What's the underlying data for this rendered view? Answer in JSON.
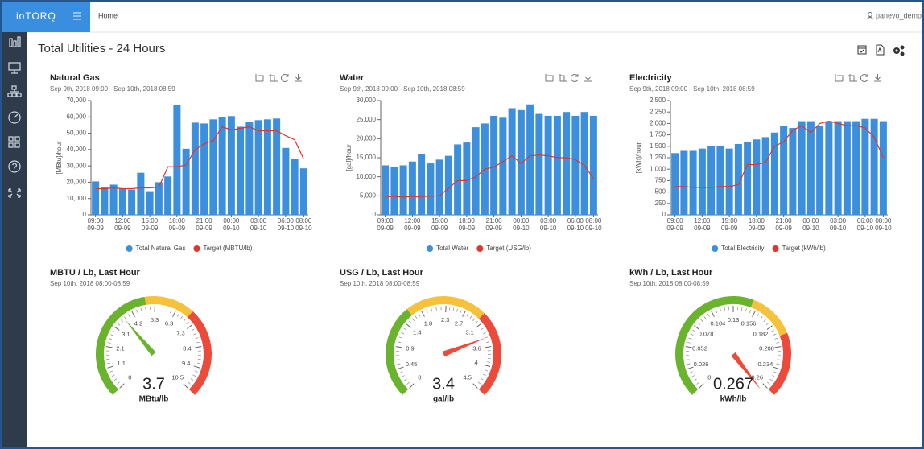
{
  "header": {
    "brand": "ioTORQ",
    "breadcrumb": "Home",
    "user": "panevo_demo"
  },
  "page_title": "Total Utilities - 24 Hours",
  "chart_data": [
    {
      "type": "bar",
      "title": "Natural Gas",
      "subtitle": "Sep 9th, 2018 09:00 - Sep 10th, 2018 08:59",
      "ylabel": "[MBtu]/hour",
      "categories": [
        [
          "09:00",
          "09-09"
        ],
        null,
        null,
        [
          "12:00",
          "09-09"
        ],
        null,
        null,
        [
          "15:00",
          "09-09"
        ],
        null,
        null,
        [
          "18:00",
          "09-09"
        ],
        null,
        null,
        [
          "21:00",
          "09-09"
        ],
        null,
        null,
        [
          "00:00",
          "09-10"
        ],
        null,
        null,
        [
          "03:00",
          "09-10"
        ],
        null,
        null,
        [
          "06:00",
          "09-10"
        ],
        null,
        [
          "08:00",
          "09-10"
        ]
      ],
      "series": [
        {
          "name": "Total Natural Gas",
          "type": "bar",
          "color": "#3b8fdd",
          "values": [
            20500,
            17000,
            18500,
            16000,
            15500,
            25800,
            14500,
            20000,
            23500,
            67500,
            40500,
            56500,
            56000,
            58500,
            60000,
            60500,
            54000,
            57000,
            58000,
            58500,
            59000,
            41000,
            34500,
            28500
          ]
        },
        {
          "name": "Target (MBTU/lb)",
          "type": "line",
          "color": "#e2342d",
          "values": [
            16000,
            16000,
            16500,
            16000,
            16000,
            16500,
            16500,
            17000,
            29500,
            29500,
            30500,
            40000,
            43500,
            45500,
            54000,
            52000,
            53000,
            54000,
            51500,
            51500,
            51500,
            48500,
            46000,
            34000
          ]
        }
      ],
      "ylim": [
        0,
        70000
      ],
      "yticks": [
        0,
        {
          "value": 10000,
          "label": "10,000"
        },
        {
          "value": 20000,
          "label": "20,000"
        },
        {
          "value": 30000,
          "label": "30,000"
        },
        {
          "value": 40000,
          "label": "40,000"
        },
        {
          "value": 50000,
          "label": "50,000"
        },
        {
          "value": 60000,
          "label": "60,000"
        },
        {
          "value": 70000,
          "label": "70,000"
        }
      ]
    },
    {
      "type": "bar",
      "title": "Water",
      "subtitle": "Sep 9th, 2018 09:00 - Sep 10th, 2018 08:59",
      "ylabel": "[gal]/hour",
      "categories": [
        [
          "09:00",
          "09-09"
        ],
        null,
        null,
        [
          "12:00",
          "09-09"
        ],
        null,
        null,
        [
          "15:00",
          "09-09"
        ],
        null,
        null,
        [
          "18:00",
          "09-09"
        ],
        null,
        null,
        [
          "21:00",
          "09-09"
        ],
        null,
        null,
        [
          "00:00",
          "09-10"
        ],
        null,
        null,
        [
          "03:00",
          "09-10"
        ],
        null,
        null,
        [
          "06:00",
          "09-10"
        ],
        null,
        [
          "08:00",
          "09-10"
        ]
      ],
      "series": [
        {
          "name": "Total Water",
          "type": "bar",
          "color": "#3b8fdd",
          "values": [
            13000,
            12500,
            13000,
            14000,
            16000,
            13500,
            14500,
            15500,
            18500,
            19000,
            23000,
            24000,
            26000,
            25500,
            28000,
            27500,
            29000,
            26500,
            26000,
            26000,
            27000,
            26000,
            27000,
            26000
          ]
        },
        {
          "name": "Target (USG/lb)",
          "type": "line",
          "color": "#e2342d",
          "values": [
            4800,
            4800,
            4700,
            4800,
            4800,
            4900,
            5000,
            7000,
            9000,
            9000,
            10000,
            12000,
            12500,
            14000,
            15500,
            13500,
            15500,
            15700,
            15500,
            15000,
            15000,
            14500,
            13000,
            9500
          ]
        }
      ],
      "ylim": [
        0,
        30000
      ],
      "yticks": [
        0,
        {
          "value": 5000,
          "label": "5,000"
        },
        {
          "value": 10000,
          "label": "10,000"
        },
        {
          "value": 15000,
          "label": "15,000"
        },
        {
          "value": 20000,
          "label": "20,000"
        },
        {
          "value": 25000,
          "label": "25,000"
        },
        {
          "value": 30000,
          "label": "30,000"
        }
      ]
    },
    {
      "type": "bar",
      "title": "Electricity",
      "subtitle": "Sep 9th, 2018 09:00 - Sep 10th, 2018 08:59",
      "ylabel": "[kWh]/hour",
      "categories": [
        [
          "09:00",
          "09-09"
        ],
        null,
        null,
        [
          "12:00",
          "09-09"
        ],
        null,
        null,
        [
          "15:00",
          "09-09"
        ],
        null,
        null,
        [
          "18:00",
          "09-09"
        ],
        null,
        null,
        [
          "21:00",
          "09-09"
        ],
        null,
        null,
        [
          "00:00",
          "09-10"
        ],
        null,
        null,
        [
          "03:00",
          "09-10"
        ],
        null,
        null,
        [
          "06:00",
          "09-10"
        ],
        null,
        [
          "08:00",
          "09-10"
        ]
      ],
      "series": [
        {
          "name": "Total Electricity",
          "type": "bar",
          "color": "#3b8fdd",
          "values": [
            1350,
            1400,
            1400,
            1450,
            1500,
            1500,
            1450,
            1550,
            1600,
            1650,
            1700,
            1800,
            1950,
            1900,
            2050,
            2050,
            1950,
            2050,
            2050,
            2050,
            2050,
            2100,
            2100,
            2050
          ]
        },
        {
          "name": "Target (kWh/lb)",
          "type": "line",
          "color": "#e2342d",
          "values": [
            620,
            620,
            600,
            600,
            600,
            620,
            620,
            660,
            1100,
            1100,
            1150,
            1500,
            1600,
            1850,
            1950,
            1800,
            2000,
            2050,
            2000,
            1950,
            1950,
            1900,
            1700,
            1250
          ]
        }
      ],
      "ylim": [
        0,
        2500
      ],
      "yticks": [
        0,
        250,
        500,
        750,
        {
          "value": 1000,
          "label": "1,000"
        },
        {
          "value": 1250,
          "label": "1,250"
        },
        {
          "value": 1500,
          "label": "1,500"
        },
        {
          "value": 1750,
          "label": "1,750"
        },
        {
          "value": 2000,
          "label": "2,000"
        },
        {
          "value": 2250,
          "label": "2,250"
        },
        {
          "value": 2500,
          "label": "2,500"
        }
      ]
    },
    {
      "type": "gauge",
      "title": "MBTU / Lb, Last Hour",
      "subtitle": "Sep 10th, 2018 08:00-08:59",
      "value": 3.7,
      "unit": "MBtu/lb",
      "range": [
        0,
        10.5
      ],
      "ticks": [
        0,
        1.1,
        2.1,
        3.1,
        4.2,
        5.3,
        6.3,
        7.3,
        8.4,
        9.4,
        10.5
      ],
      "bands": [
        {
          "to": 4.9,
          "color": "#6ab42d"
        },
        {
          "to": 6.9,
          "color": "#f6c23b"
        },
        {
          "to": 10.5,
          "color": "#ec4b3b"
        }
      ]
    },
    {
      "type": "gauge",
      "title": "USG / Lb, Last Hour",
      "subtitle": "Sep 10th, 2018 08:00-08:59",
      "value": 3.4,
      "unit": "gal/lb",
      "range": [
        0,
        4.5
      ],
      "ticks": [
        0,
        0.45,
        0.9,
        1.4,
        1.8,
        2.3,
        2.7,
        3.1,
        3.6,
        4,
        4.5
      ],
      "bands": [
        {
          "to": 1.6,
          "color": "#6ab42d"
        },
        {
          "to": 3.0,
          "color": "#f6c23b"
        },
        {
          "to": 4.5,
          "color": "#ec4b3b"
        }
      ]
    },
    {
      "type": "gauge",
      "title": "kWh / Lb, Last Hour",
      "subtitle": "Sep 10th, 2018 08:00-08:59",
      "value": 0.267,
      "unit": "kWh/lb",
      "range": [
        0,
        0.26
      ],
      "ticks": [
        0,
        0.026,
        0.052,
        0.078,
        0.104,
        0.13,
        0.156,
        0.182,
        0.208,
        0.234,
        0.26
      ],
      "bands": [
        {
          "to": 0.15,
          "color": "#6ab42d"
        },
        {
          "to": 0.196,
          "color": "#f6c23b"
        },
        {
          "to": 0.26,
          "color": "#ec4b3b"
        }
      ]
    }
  ]
}
